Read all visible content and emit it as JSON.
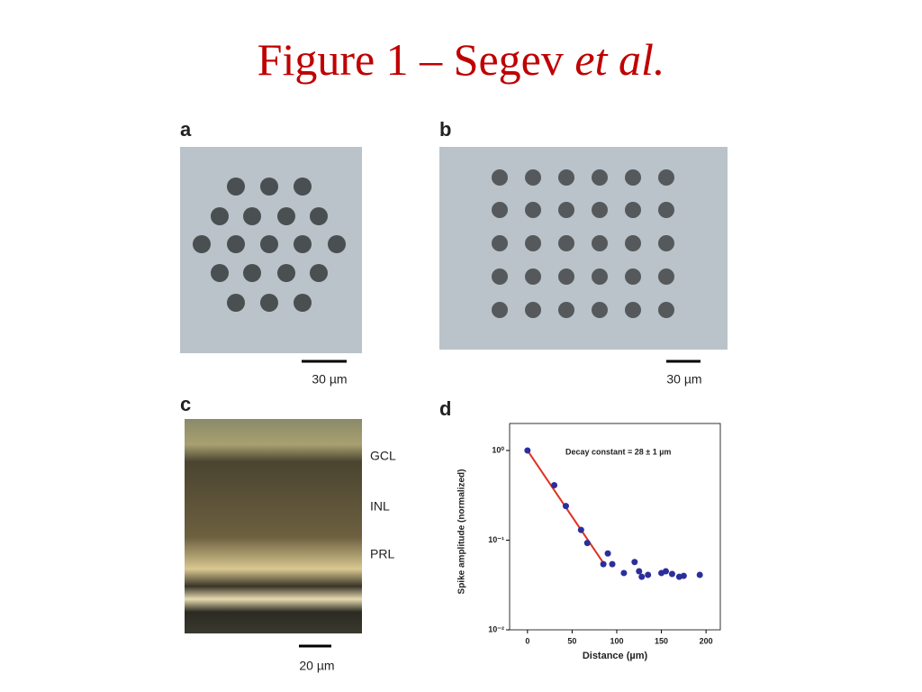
{
  "title": {
    "main": "Figure 1 – Segev",
    "italic": "et al."
  },
  "panels": {
    "a": {
      "letter": "a",
      "scale_bar": "30 µm"
    },
    "b": {
      "letter": "b",
      "scale_bar": "30 µm"
    },
    "c": {
      "letter": "c",
      "scale_bar": "20 µm",
      "layers": [
        "GCL",
        "INL",
        "PRL"
      ]
    },
    "d": {
      "letter": "d"
    }
  },
  "chart_data": {
    "type": "scatter",
    "annotation": "Decay constant = 28 ± 1 µm",
    "xlabel": "Distance (µm)",
    "ylabel": "Spike amplitude (normalized)",
    "xlim": [
      -20,
      216
    ],
    "xticks": [
      0,
      50,
      100,
      150,
      200
    ],
    "ylim": [
      0.01,
      2
    ],
    "log_y": true,
    "yticks": [
      {
        "value": 1,
        "label": "10⁰"
      },
      {
        "value": 0.1,
        "label": "10⁻¹"
      },
      {
        "value": 0.01,
        "label": "10⁻²"
      }
    ],
    "color": "#2b2e9b",
    "x": [
      0,
      30,
      43,
      60,
      67,
      85,
      90,
      95,
      108,
      120,
      125,
      128,
      135,
      150,
      155,
      162,
      170,
      175,
      193
    ],
    "values": [
      1.0,
      0.41,
      0.24,
      0.13,
      0.093,
      0.054,
      0.071,
      0.054,
      0.043,
      0.057,
      0.045,
      0.039,
      0.041,
      0.043,
      0.045,
      0.042,
      0.039,
      0.04,
      0.041
    ],
    "fit": {
      "color": "#e03020",
      "x": [
        0,
        87
      ],
      "values": [
        1.0,
        0.052
      ]
    }
  }
}
